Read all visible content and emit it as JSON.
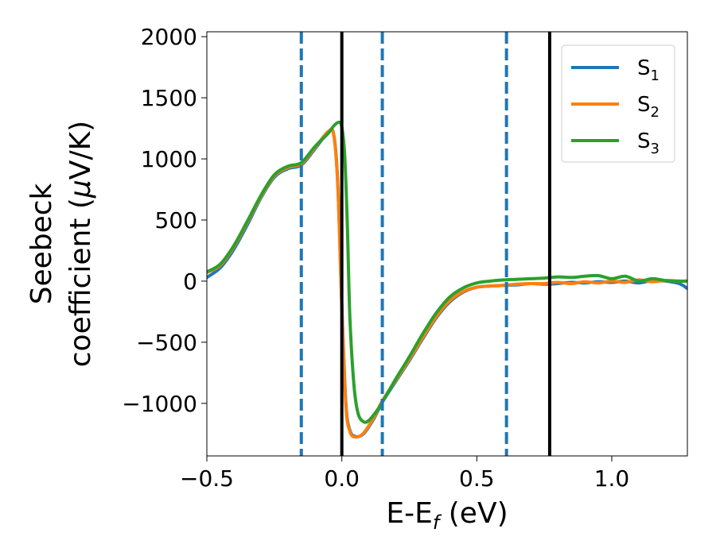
{
  "chart_data": {
    "type": "line",
    "xlabel": "E-E",
    "xlabel_sub": "f",
    "xlabel_unit": " (eV)",
    "ylabel_line1": "Seebeck",
    "ylabel_line2": "coefficient  (",
    "ylabel_mu": "μ",
    "ylabel_unit": "V/K)",
    "xlim": [
      -0.5,
      1.28
    ],
    "ylim": [
      -1430,
      2040
    ],
    "x_ticks": [
      -0.5,
      0.0,
      0.5,
      1.0
    ],
    "x_tick_labels": [
      "−0.5",
      "0.0",
      "0.5",
      "1.0"
    ],
    "y_ticks": [
      -1000,
      -500,
      0,
      500,
      1000,
      1500,
      2000
    ],
    "y_tick_labels": [
      "−1000",
      "−500",
      "0",
      "500",
      "1000",
      "1500",
      "2000"
    ],
    "grid": false,
    "legend_position": "top-right",
    "vlines_dashed": {
      "x": [
        -0.15,
        0.15,
        0.61
      ],
      "color": "#1f77b4"
    },
    "vlines_solid": {
      "x": [
        0.0,
        0.77
      ],
      "color": "#000000"
    },
    "series": [
      {
        "name": "S",
        "sub": "1",
        "color": "#1f77b4",
        "points": [
          [
            -0.5,
            30
          ],
          [
            -0.45,
            110
          ],
          [
            -0.4,
            260
          ],
          [
            -0.35,
            460
          ],
          [
            -0.3,
            680
          ],
          [
            -0.25,
            850
          ],
          [
            -0.2,
            920
          ],
          [
            -0.15,
            950
          ],
          [
            -0.1,
            1080
          ],
          [
            -0.05,
            1220
          ],
          [
            -0.03,
            1200
          ],
          [
            -0.015,
            800
          ],
          [
            0.0,
            -200
          ],
          [
            0.015,
            -1000
          ],
          [
            0.03,
            -1220
          ],
          [
            0.05,
            -1270
          ],
          [
            0.08,
            -1250
          ],
          [
            0.12,
            -1120
          ],
          [
            0.15,
            -990
          ],
          [
            0.2,
            -820
          ],
          [
            0.25,
            -650
          ],
          [
            0.3,
            -470
          ],
          [
            0.35,
            -300
          ],
          [
            0.4,
            -170
          ],
          [
            0.45,
            -90
          ],
          [
            0.5,
            -50
          ],
          [
            0.55,
            -40
          ],
          [
            0.6,
            -35
          ],
          [
            0.65,
            -30
          ],
          [
            0.7,
            -20
          ],
          [
            0.75,
            -25
          ],
          [
            0.8,
            -20
          ],
          [
            0.85,
            -10
          ],
          [
            0.9,
            -15
          ],
          [
            0.95,
            -5
          ],
          [
            1.0,
            -10
          ],
          [
            1.05,
            0
          ],
          [
            1.1,
            -15
          ],
          [
            1.15,
            5
          ],
          [
            1.2,
            0
          ],
          [
            1.25,
            -20
          ],
          [
            1.28,
            -60
          ]
        ]
      },
      {
        "name": "S",
        "sub": "2",
        "color": "#ff7f0e",
        "points": [
          [
            -0.5,
            70
          ],
          [
            -0.45,
            130
          ],
          [
            -0.4,
            280
          ],
          [
            -0.35,
            480
          ],
          [
            -0.3,
            690
          ],
          [
            -0.25,
            860
          ],
          [
            -0.2,
            930
          ],
          [
            -0.15,
            960
          ],
          [
            -0.1,
            1090
          ],
          [
            -0.05,
            1225
          ],
          [
            -0.03,
            1195
          ],
          [
            -0.015,
            780
          ],
          [
            0.0,
            -220
          ],
          [
            0.015,
            -1020
          ],
          [
            0.03,
            -1230
          ],
          [
            0.05,
            -1275
          ],
          [
            0.08,
            -1245
          ],
          [
            0.12,
            -1110
          ],
          [
            0.15,
            -980
          ],
          [
            0.2,
            -810
          ],
          [
            0.25,
            -640
          ],
          [
            0.3,
            -460
          ],
          [
            0.35,
            -290
          ],
          [
            0.4,
            -160
          ],
          [
            0.45,
            -85
          ],
          [
            0.5,
            -50
          ],
          [
            0.55,
            -40
          ],
          [
            0.6,
            -35
          ],
          [
            0.65,
            -25
          ],
          [
            0.7,
            -20
          ],
          [
            0.75,
            -20
          ],
          [
            0.8,
            -10
          ],
          [
            0.85,
            -20
          ],
          [
            0.9,
            -5
          ],
          [
            0.95,
            -15
          ],
          [
            1.0,
            0
          ],
          [
            1.05,
            -10
          ],
          [
            1.1,
            10
          ],
          [
            1.15,
            -5
          ],
          [
            1.2,
            5
          ],
          [
            1.25,
            0
          ],
          [
            1.28,
            0
          ]
        ]
      },
      {
        "name": "S",
        "sub": "3",
        "color": "#2ca02c",
        "points": [
          [
            -0.5,
            75
          ],
          [
            -0.45,
            140
          ],
          [
            -0.4,
            290
          ],
          [
            -0.35,
            490
          ],
          [
            -0.3,
            700
          ],
          [
            -0.25,
            870
          ],
          [
            -0.2,
            940
          ],
          [
            -0.15,
            970
          ],
          [
            -0.1,
            1100
          ],
          [
            -0.05,
            1210
          ],
          [
            -0.03,
            1270
          ],
          [
            -0.01,
            1300
          ],
          [
            0.0,
            1260
          ],
          [
            0.01,
            1050
          ],
          [
            0.02,
            500
          ],
          [
            0.03,
            -300
          ],
          [
            0.045,
            -850
          ],
          [
            0.06,
            -1080
          ],
          [
            0.08,
            -1150
          ],
          [
            0.1,
            -1140
          ],
          [
            0.13,
            -1060
          ],
          [
            0.15,
            -990
          ],
          [
            0.2,
            -800
          ],
          [
            0.25,
            -620
          ],
          [
            0.3,
            -430
          ],
          [
            0.35,
            -260
          ],
          [
            0.4,
            -130
          ],
          [
            0.45,
            -55
          ],
          [
            0.5,
            -15
          ],
          [
            0.55,
            0
          ],
          [
            0.6,
            10
          ],
          [
            0.65,
            15
          ],
          [
            0.7,
            20
          ],
          [
            0.75,
            25
          ],
          [
            0.8,
            35
          ],
          [
            0.85,
            30
          ],
          [
            0.9,
            40
          ],
          [
            0.95,
            45
          ],
          [
            1.0,
            20
          ],
          [
            1.05,
            40
          ],
          [
            1.1,
            0
          ],
          [
            1.15,
            20
          ],
          [
            1.2,
            5
          ],
          [
            1.25,
            0
          ],
          [
            1.28,
            0
          ]
        ]
      }
    ]
  }
}
